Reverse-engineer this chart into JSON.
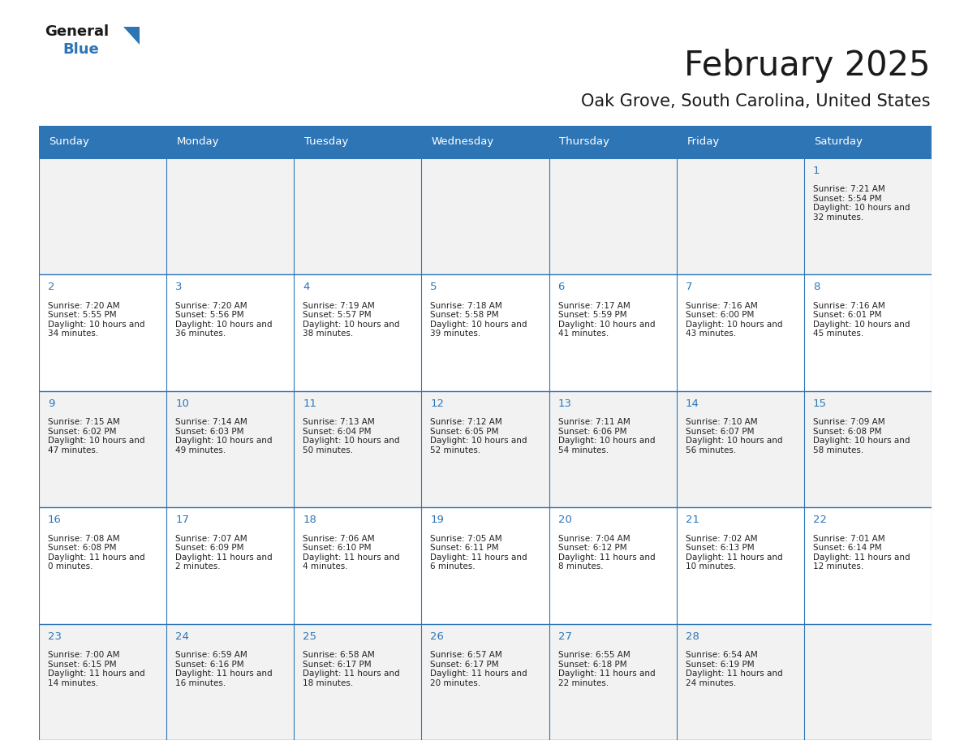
{
  "title": "February 2025",
  "subtitle": "Oak Grove, South Carolina, United States",
  "days_of_week": [
    "Sunday",
    "Monday",
    "Tuesday",
    "Wednesday",
    "Thursday",
    "Friday",
    "Saturday"
  ],
  "header_bg": "#2E75B6",
  "header_text": "#FFFFFF",
  "cell_bg_even": "#F2F2F2",
  "cell_bg_odd": "#FFFFFF",
  "cell_text": "#222222",
  "day_number_color": "#2E75B6",
  "border_color": "#2E75B6",
  "title_color": "#1a1a1a",
  "subtitle_color": "#1a1a1a",
  "background_color": "#FFFFFF",
  "logo_general_color": "#1a1a1a",
  "logo_blue_color": "#2E75B6",
  "logo_triangle_color": "#2E75B6",
  "calendar": [
    [
      null,
      null,
      null,
      null,
      null,
      null,
      {
        "day": 1,
        "sunrise": "7:21 AM",
        "sunset": "5:54 PM",
        "daylight": "10 hours and 32 minutes"
      }
    ],
    [
      {
        "day": 2,
        "sunrise": "7:20 AM",
        "sunset": "5:55 PM",
        "daylight": "10 hours and 34 minutes"
      },
      {
        "day": 3,
        "sunrise": "7:20 AM",
        "sunset": "5:56 PM",
        "daylight": "10 hours and 36 minutes"
      },
      {
        "day": 4,
        "sunrise": "7:19 AM",
        "sunset": "5:57 PM",
        "daylight": "10 hours and 38 minutes"
      },
      {
        "day": 5,
        "sunrise": "7:18 AM",
        "sunset": "5:58 PM",
        "daylight": "10 hours and 39 minutes"
      },
      {
        "day": 6,
        "sunrise": "7:17 AM",
        "sunset": "5:59 PM",
        "daylight": "10 hours and 41 minutes"
      },
      {
        "day": 7,
        "sunrise": "7:16 AM",
        "sunset": "6:00 PM",
        "daylight": "10 hours and 43 minutes"
      },
      {
        "day": 8,
        "sunrise": "7:16 AM",
        "sunset": "6:01 PM",
        "daylight": "10 hours and 45 minutes"
      }
    ],
    [
      {
        "day": 9,
        "sunrise": "7:15 AM",
        "sunset": "6:02 PM",
        "daylight": "10 hours and 47 minutes"
      },
      {
        "day": 10,
        "sunrise": "7:14 AM",
        "sunset": "6:03 PM",
        "daylight": "10 hours and 49 minutes"
      },
      {
        "day": 11,
        "sunrise": "7:13 AM",
        "sunset": "6:04 PM",
        "daylight": "10 hours and 50 minutes"
      },
      {
        "day": 12,
        "sunrise": "7:12 AM",
        "sunset": "6:05 PM",
        "daylight": "10 hours and 52 minutes"
      },
      {
        "day": 13,
        "sunrise": "7:11 AM",
        "sunset": "6:06 PM",
        "daylight": "10 hours and 54 minutes"
      },
      {
        "day": 14,
        "sunrise": "7:10 AM",
        "sunset": "6:07 PM",
        "daylight": "10 hours and 56 minutes"
      },
      {
        "day": 15,
        "sunrise": "7:09 AM",
        "sunset": "6:08 PM",
        "daylight": "10 hours and 58 minutes"
      }
    ],
    [
      {
        "day": 16,
        "sunrise": "7:08 AM",
        "sunset": "6:08 PM",
        "daylight": "11 hours and 0 minutes"
      },
      {
        "day": 17,
        "sunrise": "7:07 AM",
        "sunset": "6:09 PM",
        "daylight": "11 hours and 2 minutes"
      },
      {
        "day": 18,
        "sunrise": "7:06 AM",
        "sunset": "6:10 PM",
        "daylight": "11 hours and 4 minutes"
      },
      {
        "day": 19,
        "sunrise": "7:05 AM",
        "sunset": "6:11 PM",
        "daylight": "11 hours and 6 minutes"
      },
      {
        "day": 20,
        "sunrise": "7:04 AM",
        "sunset": "6:12 PM",
        "daylight": "11 hours and 8 minutes"
      },
      {
        "day": 21,
        "sunrise": "7:02 AM",
        "sunset": "6:13 PM",
        "daylight": "11 hours and 10 minutes"
      },
      {
        "day": 22,
        "sunrise": "7:01 AM",
        "sunset": "6:14 PM",
        "daylight": "11 hours and 12 minutes"
      }
    ],
    [
      {
        "day": 23,
        "sunrise": "7:00 AM",
        "sunset": "6:15 PM",
        "daylight": "11 hours and 14 minutes"
      },
      {
        "day": 24,
        "sunrise": "6:59 AM",
        "sunset": "6:16 PM",
        "daylight": "11 hours and 16 minutes"
      },
      {
        "day": 25,
        "sunrise": "6:58 AM",
        "sunset": "6:17 PM",
        "daylight": "11 hours and 18 minutes"
      },
      {
        "day": 26,
        "sunrise": "6:57 AM",
        "sunset": "6:17 PM",
        "daylight": "11 hours and 20 minutes"
      },
      {
        "day": 27,
        "sunrise": "6:55 AM",
        "sunset": "6:18 PM",
        "daylight": "11 hours and 22 minutes"
      },
      {
        "day": 28,
        "sunrise": "6:54 AM",
        "sunset": "6:19 PM",
        "daylight": "11 hours and 24 minutes"
      },
      null
    ]
  ]
}
